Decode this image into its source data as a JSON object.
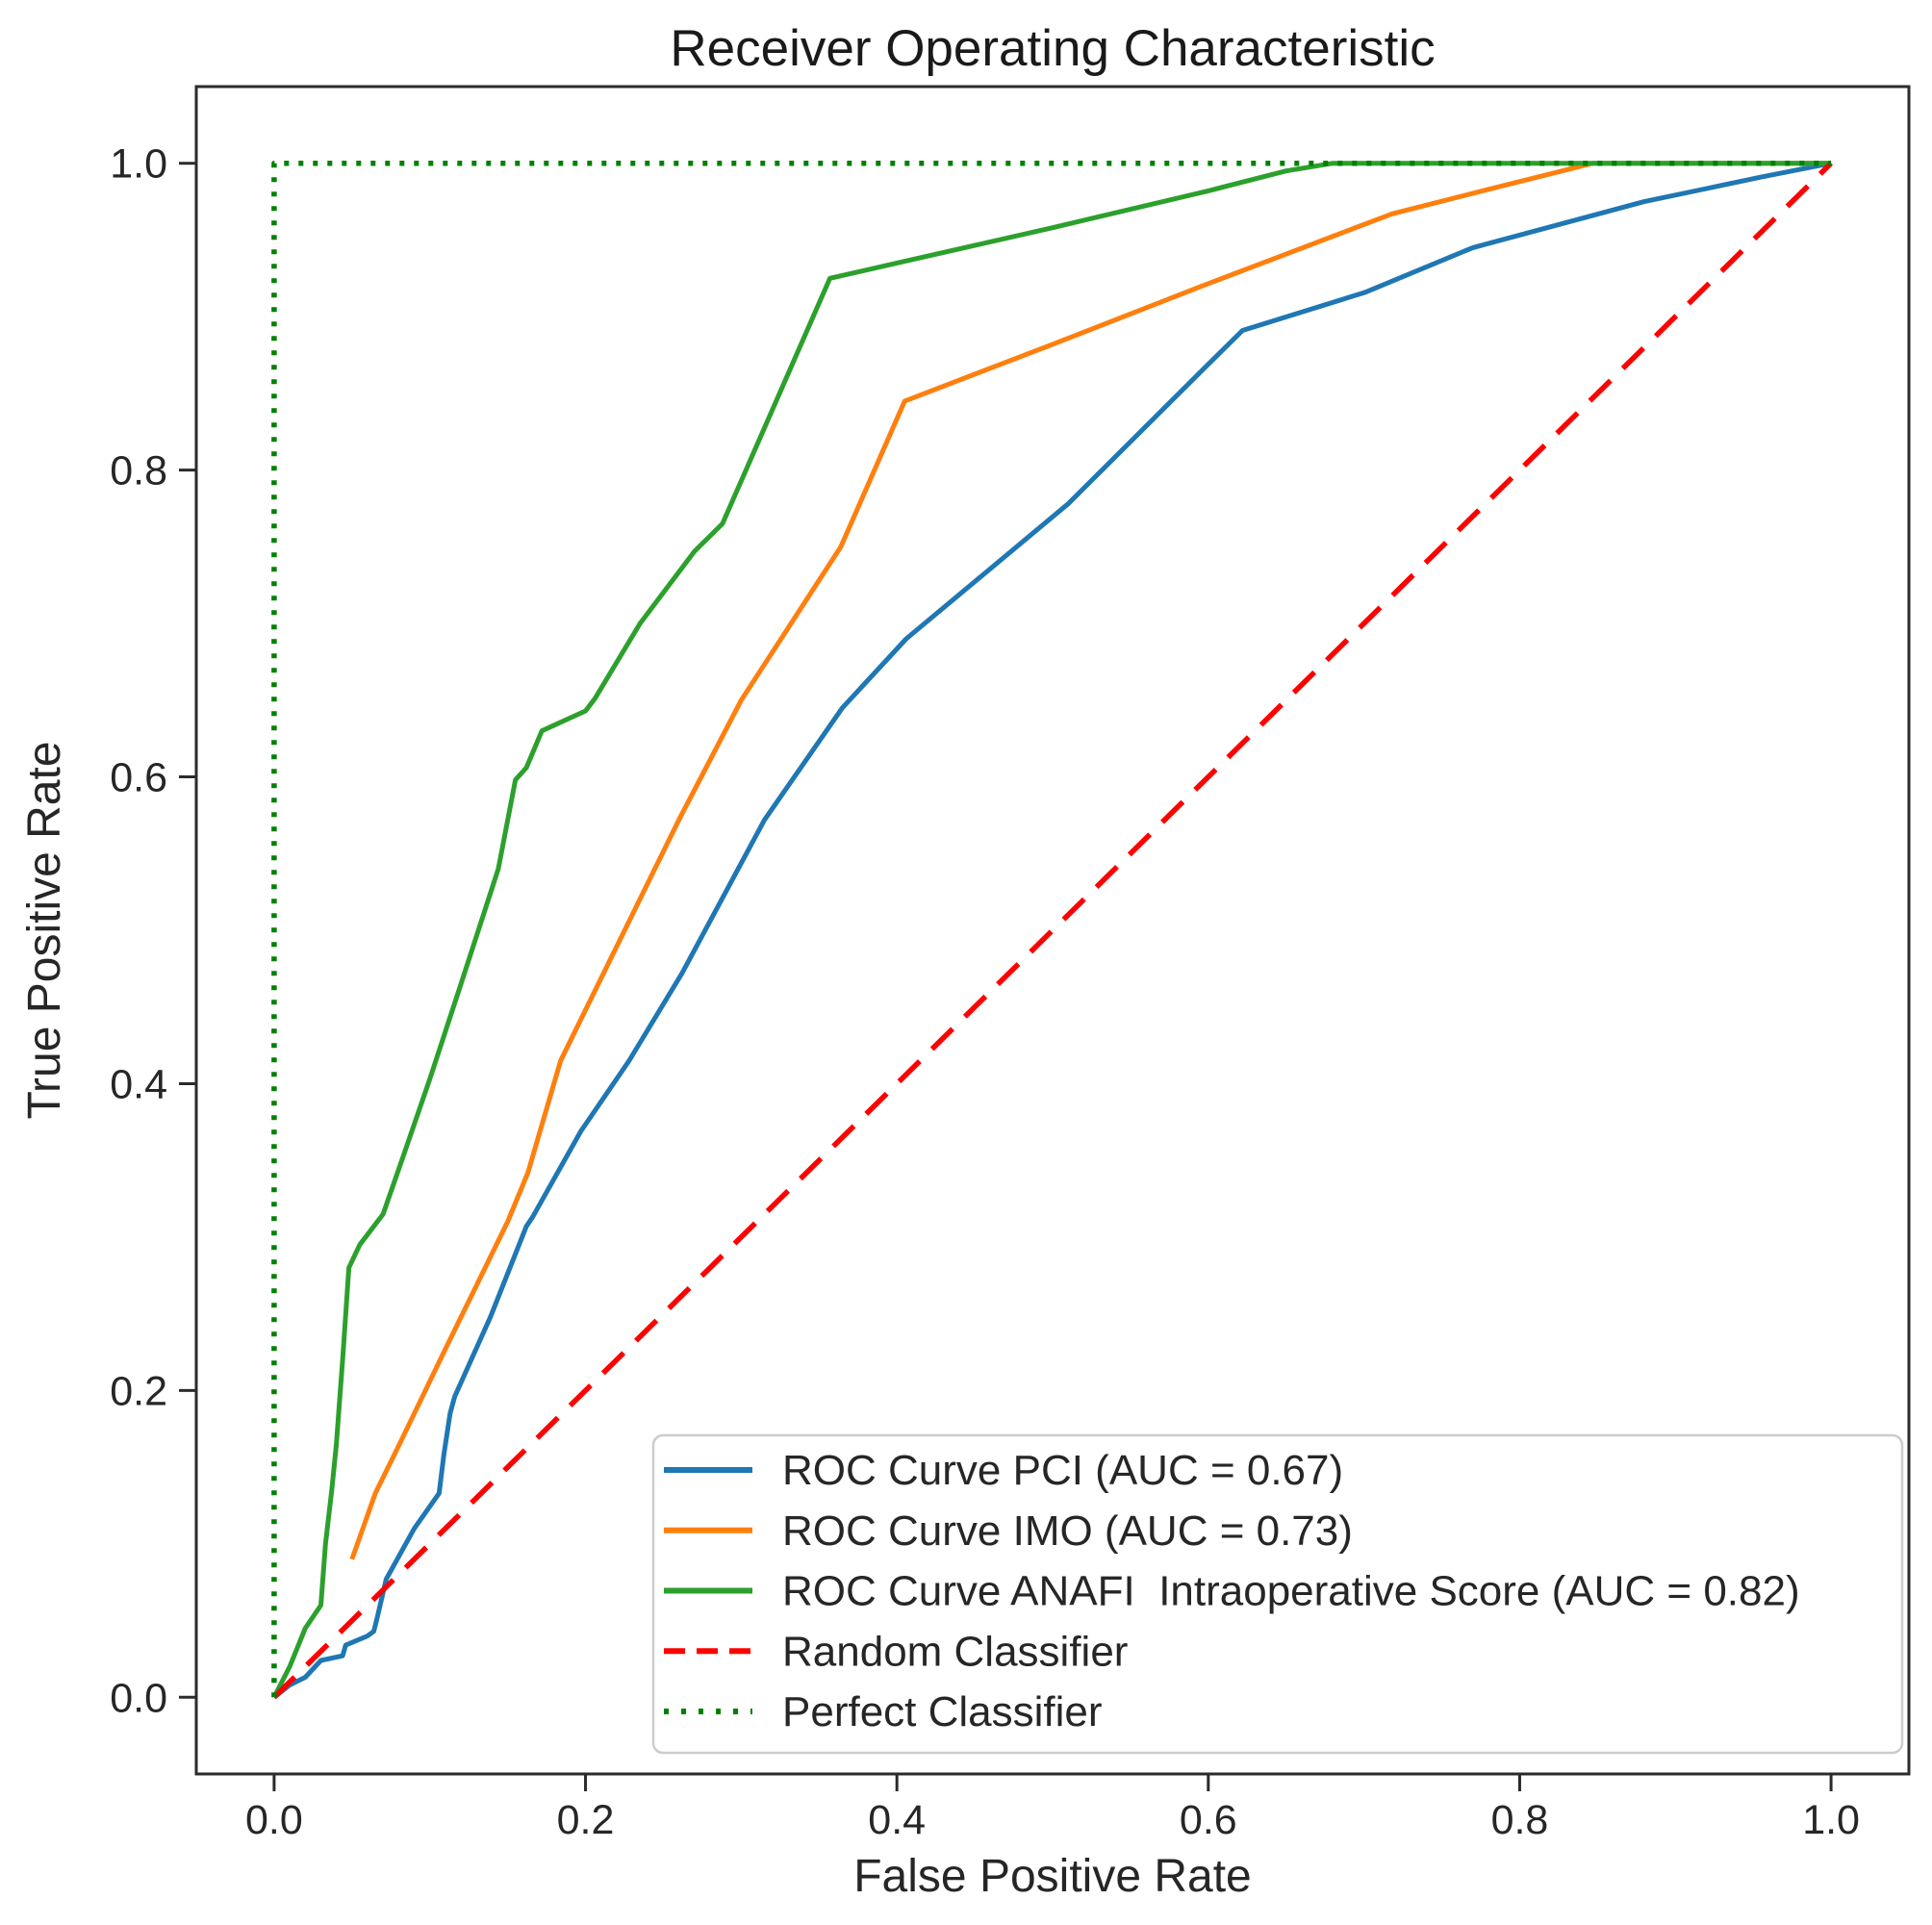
{
  "chart_data": {
    "type": "line",
    "title": "Receiver Operating Characteristic",
    "xlabel": "False Positive Rate",
    "ylabel": "True Positive Rate",
    "xlim": [
      -0.05,
      1.05
    ],
    "ylim": [
      -0.05,
      1.05
    ],
    "xtick_values": [
      0.0,
      0.2,
      0.4,
      0.6,
      0.8,
      1.0
    ],
    "xtick_labels": [
      "0.0",
      "0.2",
      "0.4",
      "0.6",
      "0.8",
      "1.0"
    ],
    "ytick_values": [
      0.0,
      0.2,
      0.4,
      0.6,
      0.8,
      1.0
    ],
    "ytick_labels": [
      "0.0",
      "0.2",
      "0.4",
      "0.6",
      "0.8",
      "1.0"
    ],
    "grid": false,
    "legend_position": "lower right",
    "series": [
      {
        "id": "roc-curve-pci",
        "name": "ROC Curve PCI (AUC = 0.67)",
        "auc": 0.67,
        "color": "#1f77b4",
        "style": "solid",
        "points": [
          [
            0.0,
            0.0
          ],
          [
            0.01,
            0.008
          ],
          [
            0.02,
            0.013
          ],
          [
            0.03,
            0.024
          ],
          [
            0.044,
            0.027
          ],
          [
            0.046,
            0.034
          ],
          [
            0.06,
            0.04
          ],
          [
            0.064,
            0.043
          ],
          [
            0.066,
            0.051
          ],
          [
            0.072,
            0.077
          ],
          [
            0.09,
            0.11
          ],
          [
            0.106,
            0.133
          ],
          [
            0.109,
            0.158
          ],
          [
            0.113,
            0.185
          ],
          [
            0.116,
            0.196
          ],
          [
            0.139,
            0.248
          ],
          [
            0.162,
            0.307
          ],
          [
            0.166,
            0.313
          ],
          [
            0.197,
            0.369
          ],
          [
            0.228,
            0.415
          ],
          [
            0.262,
            0.472
          ],
          [
            0.315,
            0.572
          ],
          [
            0.365,
            0.645
          ],
          [
            0.406,
            0.69
          ],
          [
            0.51,
            0.778
          ],
          [
            0.597,
            0.866
          ],
          [
            0.622,
            0.891
          ],
          [
            0.701,
            0.916
          ],
          [
            0.77,
            0.945
          ],
          [
            0.88,
            0.975
          ],
          [
            0.955,
            0.991
          ],
          [
            1.0,
            1.0
          ]
        ]
      },
      {
        "id": "roc-curve-imo",
        "name": "ROC Curve IMO (AUC = 0.73)",
        "auc": 0.73,
        "color": "#ff7f0e",
        "style": "solid",
        "points": [
          [
            0.05,
            0.09
          ],
          [
            0.065,
            0.133
          ],
          [
            0.08,
            0.164
          ],
          [
            0.11,
            0.227
          ],
          [
            0.15,
            0.31
          ],
          [
            0.163,
            0.342
          ],
          [
            0.184,
            0.415
          ],
          [
            0.26,
            0.572
          ],
          [
            0.3,
            0.65
          ],
          [
            0.364,
            0.75
          ],
          [
            0.405,
            0.845
          ],
          [
            0.5,
            0.882
          ],
          [
            0.596,
            0.92
          ],
          [
            0.718,
            0.967
          ],
          [
            0.78,
            0.983
          ],
          [
            0.847,
            1.0
          ],
          [
            1.0,
            1.0
          ]
        ]
      },
      {
        "id": "roc-curve-anafi",
        "name": "ROC Curve ANAFI  Intraoperative Score (AUC = 0.82)",
        "auc": 0.82,
        "color": "#2ca02c",
        "style": "solid",
        "points": [
          [
            0.0,
            0.0
          ],
          [
            0.01,
            0.02
          ],
          [
            0.02,
            0.045
          ],
          [
            0.03,
            0.06
          ],
          [
            0.033,
            0.1
          ],
          [
            0.037,
            0.135
          ],
          [
            0.04,
            0.165
          ],
          [
            0.044,
            0.22
          ],
          [
            0.048,
            0.28
          ],
          [
            0.055,
            0.295
          ],
          [
            0.07,
            0.315
          ],
          [
            0.082,
            0.35
          ],
          [
            0.1,
            0.403
          ],
          [
            0.12,
            0.465
          ],
          [
            0.144,
            0.54
          ],
          [
            0.155,
            0.598
          ],
          [
            0.162,
            0.606
          ],
          [
            0.172,
            0.63
          ],
          [
            0.2,
            0.643
          ],
          [
            0.206,
            0.651
          ],
          [
            0.235,
            0.7
          ],
          [
            0.27,
            0.747
          ],
          [
            0.288,
            0.765
          ],
          [
            0.357,
            0.925
          ],
          [
            0.4,
            0.935
          ],
          [
            0.5,
            0.958
          ],
          [
            0.6,
            0.982
          ],
          [
            0.65,
            0.995
          ],
          [
            0.68,
            1.0
          ],
          [
            1.0,
            1.0
          ]
        ]
      },
      {
        "id": "random-classifier-line",
        "name": "Random Classifier",
        "color": "#ff0000",
        "style": "dashed",
        "points": [
          [
            0.0,
            0.0
          ],
          [
            1.0,
            1.0
          ]
        ]
      },
      {
        "id": "perfect-classifier-line",
        "name": "Perfect Classifier",
        "color": "#008000",
        "style": "dotted",
        "points": [
          [
            0.0,
            0.0
          ],
          [
            0.0,
            1.0
          ],
          [
            1.0,
            1.0
          ]
        ]
      }
    ]
  }
}
